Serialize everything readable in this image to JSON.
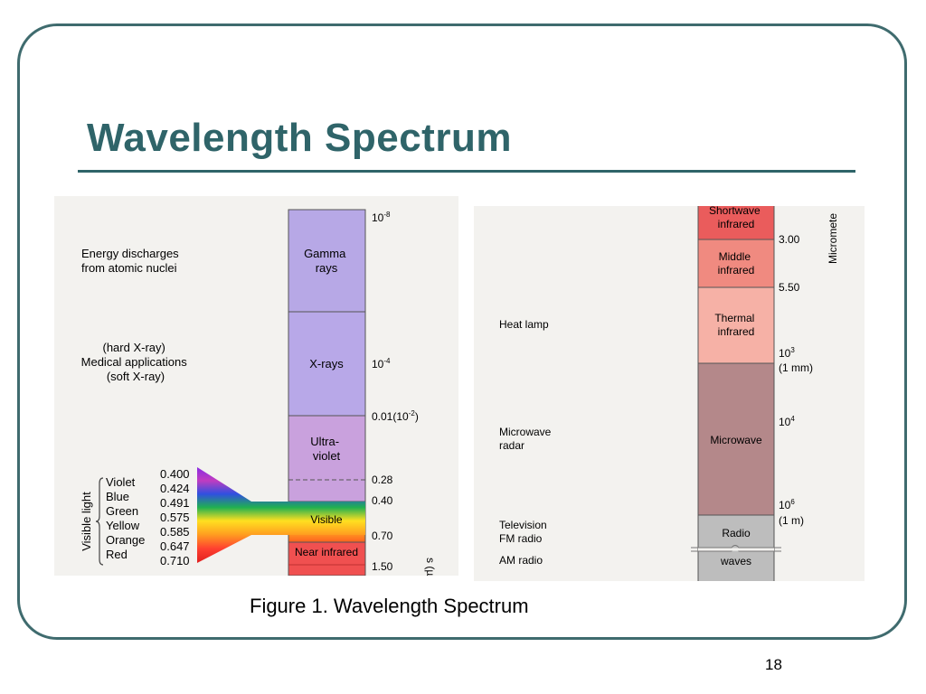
{
  "slide": {
    "title": "Wavelength Spectrum",
    "caption": "Figure 1. Wavelength Spectrum",
    "page_number": "18"
  },
  "left_diagram": {
    "bands": [
      {
        "label": "Gamma\nrays",
        "color": "#b7a8e6"
      },
      {
        "label": "X-rays",
        "color": "#b8a8e8"
      },
      {
        "label": "Ultra-\nviolet",
        "color": "#c9a1dd"
      },
      {
        "label": "Visible",
        "color": "#ffd21f"
      },
      {
        "label": "Near infrared",
        "color": "#f05050"
      }
    ],
    "scale_labels": [
      {
        "base": "10",
        "exp": "-8",
        "suffix": ""
      },
      {
        "base": "10",
        "exp": "-4",
        "suffix": ""
      },
      {
        "base": "0.01(10",
        "exp": "-2",
        "suffix": ")"
      },
      {
        "base": "0.28",
        "exp": "",
        "suffix": ""
      },
      {
        "base": "0.40",
        "exp": "",
        "suffix": ""
      },
      {
        "base": "0.70",
        "exp": "",
        "suffix": ""
      },
      {
        "base": "1.50",
        "exp": "",
        "suffix": ""
      }
    ],
    "sources": [
      {
        "lines": [
          "Energy discharges",
          "from atomic nuclei"
        ]
      },
      {
        "lines": [
          "(hard X-ray)",
          "Medical applications",
          "(soft X-ray)"
        ]
      }
    ],
    "visible_light_label": "Visible light",
    "colors": [
      {
        "name": "Violet",
        "value": "0.400"
      },
      {
        "name": "Blue",
        "value": "0.424"
      },
      {
        "name": "Green",
        "value": "0.491"
      },
      {
        "name": "Yellow",
        "value": "0.575"
      },
      {
        "name": "Orange",
        "value": "0.585"
      },
      {
        "name": "Red",
        "value": "0.647"
      },
      {
        "name": "",
        "value": "0.710"
      }
    ],
    "axis_label": "s (µm)"
  },
  "right_diagram": {
    "bands": [
      {
        "label": "Shortwave\ninfrared",
        "color": "#ea5c5c"
      },
      {
        "label": "Middle\ninfrared",
        "color": "#f08a80"
      },
      {
        "label": "Thermal\ninfrared",
        "color": "#f6b1a6"
      },
      {
        "label": "Microwave",
        "color": "#b4888a"
      },
      {
        "label": "Radio",
        "color": "#bdbdbd"
      },
      {
        "label": "waves",
        "color": "#bdbdbd"
      }
    ],
    "scale_labels": [
      {
        "lines": [
          "3.00"
        ],
        "exp": ""
      },
      {
        "lines": [
          "5.50"
        ],
        "exp": ""
      },
      {
        "lines": [
          "10",
          "(1 mm)"
        ],
        "exp": "3"
      },
      {
        "lines": [
          "10"
        ],
        "exp": "4"
      },
      {
        "lines": [
          "10",
          "(1 m)"
        ],
        "exp": "6"
      }
    ],
    "sources": [
      "Heat lamp",
      "Microwave\nradar",
      "Television\nFM radio",
      "AM radio"
    ],
    "axis_label": "Micromete"
  }
}
